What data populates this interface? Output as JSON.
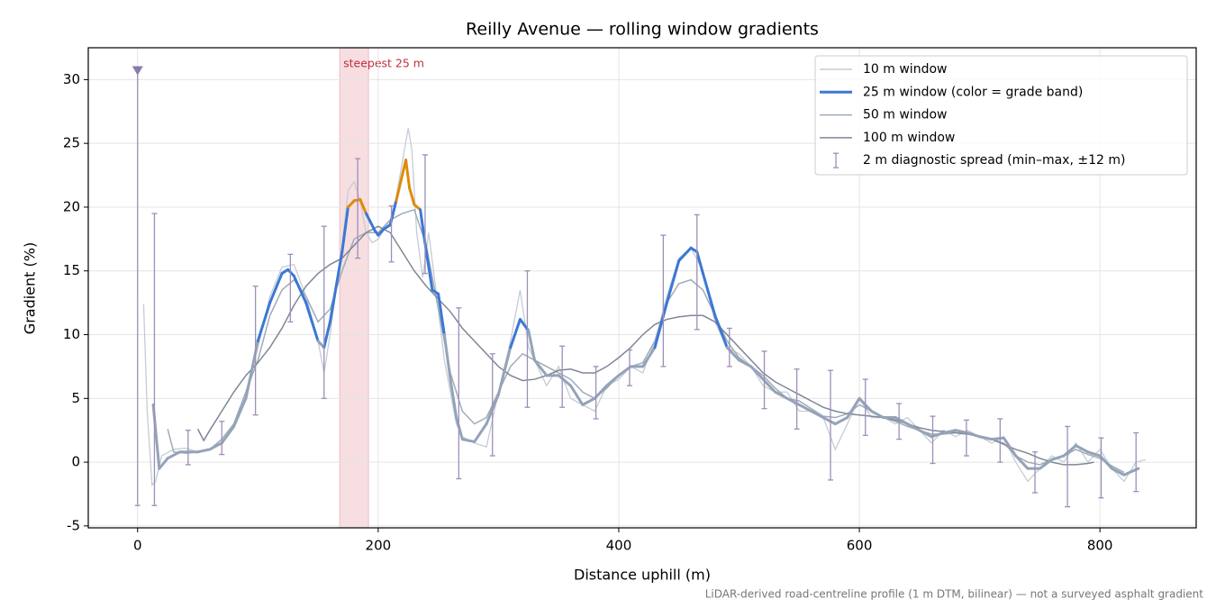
{
  "chart_data": {
    "type": "line",
    "title": "Reilly Avenue — rolling window gradients",
    "xlabel": "Distance uphill (m)",
    "ylabel": "Gradient (%)",
    "footnote": "LiDAR-derived road-centreline profile (1 m DTM, bilinear) — not a surveyed asphalt gradient",
    "xlim": [
      -41,
      880
    ],
    "ylim": [
      -5.15,
      32.5
    ],
    "xticks": [
      0,
      200,
      400,
      600,
      800
    ],
    "yticks": [
      -5,
      0,
      5,
      10,
      15,
      20,
      25,
      30
    ],
    "grid": true,
    "legend": "upper right",
    "span": {
      "x": [
        168,
        192
      ],
      "color": "#e8a0a8",
      "label": "steepest 25 m",
      "label_color": "#c0303c"
    },
    "grade_bands": {
      "thresholds": [
        10,
        20
      ],
      "colors": [
        "#94a3b8",
        "#3a78d4",
        "#e08a0b"
      ]
    },
    "series": [
      {
        "name": "10 m window",
        "color": "#c5ccd6",
        "x": [
          5,
          8,
          12,
          15,
          20,
          30,
          40,
          50,
          60,
          70,
          80,
          90,
          100,
          110,
          120,
          130,
          140,
          150,
          155,
          160,
          170,
          175,
          180,
          185,
          190,
          195,
          200,
          210,
          215,
          220,
          225,
          228,
          232,
          237,
          242,
          246,
          250,
          255,
          260,
          265,
          270,
          280,
          290,
          300,
          310,
          318,
          325,
          330,
          340,
          350,
          360,
          370,
          380,
          390,
          400,
          410,
          420,
          430,
          440,
          450,
          460,
          470,
          480,
          490,
          500,
          510,
          520,
          530,
          540,
          550,
          560,
          570,
          580,
          590,
          600,
          610,
          620,
          630,
          640,
          650,
          660,
          670,
          680,
          690,
          700,
          710,
          720,
          730,
          740,
          750,
          760,
          770,
          780,
          790,
          800,
          810,
          820,
          830,
          838
        ],
        "values": [
          12.4,
          4,
          -1.8,
          -1.5,
          0.5,
          1.0,
          1.1,
          0.8,
          1.0,
          1.5,
          3.0,
          5.5,
          9.0,
          13.0,
          15.3,
          15.5,
          13.0,
          9.5,
          7.0,
          10.0,
          17.0,
          21.3,
          22.0,
          20.5,
          18.0,
          17.2,
          17.5,
          19.0,
          20.8,
          23.5,
          26.2,
          24.5,
          18.0,
          14.5,
          18.0,
          15.0,
          12.0,
          8.0,
          5.5,
          3.0,
          2.0,
          1.5,
          1.2,
          5.5,
          9.5,
          13.5,
          9.0,
          8.0,
          6.0,
          7.5,
          5.0,
          4.5,
          4.0,
          6.0,
          6.5,
          7.5,
          7.0,
          9.5,
          13.0,
          16.0,
          16.8,
          15.0,
          11.0,
          9.0,
          8.5,
          7.5,
          6.0,
          5.5,
          5.5,
          4.0,
          4.0,
          3.5,
          1.0,
          3.0,
          5.0,
          3.5,
          3.5,
          3.0,
          3.5,
          2.5,
          1.5,
          2.5,
          2.0,
          2.5,
          2.0,
          1.5,
          2.0,
          0.0,
          -1.5,
          -0.5,
          0.5,
          0.0,
          1.5,
          0.0,
          1.0,
          -0.5,
          -1.5,
          0.0,
          0.2
        ]
      },
      {
        "name": "25 m window (color = grade band)",
        "color": "#3a78d4",
        "banded": true,
        "x": [
          13,
          18,
          25,
          35,
          50,
          60,
          70,
          80,
          90,
          100,
          110,
          120,
          125,
          130,
          140,
          150,
          155,
          160,
          170,
          175,
          180,
          185,
          190,
          197,
          200,
          205,
          210,
          215,
          220,
          223,
          226,
          230,
          235,
          240,
          245,
          250,
          255,
          260,
          265,
          270,
          280,
          290,
          300,
          310,
          318,
          325,
          330,
          340,
          350,
          360,
          370,
          380,
          390,
          400,
          410,
          420,
          430,
          440,
          450,
          460,
          465,
          470,
          480,
          490,
          500,
          510,
          520,
          530,
          540,
          550,
          560,
          570,
          580,
          590,
          600,
          610,
          620,
          630,
          640,
          650,
          660,
          670,
          680,
          690,
          700,
          710,
          720,
          730,
          740,
          750,
          760,
          770,
          780,
          790,
          800,
          810,
          820,
          832
        ],
        "values": [
          4.5,
          -0.5,
          0.3,
          0.8,
          0.8,
          1.0,
          1.5,
          2.8,
          5.0,
          9.5,
          12.5,
          14.8,
          15.1,
          14.6,
          12.5,
          9.5,
          9.0,
          11.0,
          16.5,
          20.0,
          20.5,
          20.6,
          19.5,
          18.2,
          17.8,
          18.3,
          18.6,
          20.5,
          22.5,
          23.7,
          21.5,
          20.2,
          19.8,
          16.5,
          13.5,
          13.2,
          10.0,
          6.5,
          3.5,
          1.8,
          1.6,
          3.0,
          5.3,
          9.0,
          11.2,
          10.3,
          8.0,
          6.8,
          6.8,
          6.0,
          4.5,
          5.0,
          6.0,
          6.8,
          7.5,
          7.5,
          9.0,
          12.5,
          15.8,
          16.8,
          16.5,
          14.8,
          11.5,
          9.0,
          8.0,
          7.5,
          6.5,
          5.5,
          5.0,
          4.5,
          4.0,
          3.5,
          3.0,
          3.5,
          5.0,
          4.0,
          3.5,
          3.5,
          3.0,
          2.5,
          2.0,
          2.3,
          2.5,
          2.3,
          2.0,
          1.8,
          1.9,
          0.5,
          -0.5,
          -0.5,
          0.2,
          0.5,
          1.3,
          0.8,
          0.5,
          -0.5,
          -1.0,
          -0.5
        ]
      },
      {
        "name": "50 m window",
        "color": "#a0aab8",
        "x": [
          25,
          30,
          40,
          50,
          60,
          70,
          80,
          90,
          100,
          110,
          120,
          130,
          140,
          150,
          160,
          170,
          180,
          190,
          200,
          210,
          220,
          230,
          240,
          250,
          260,
          270,
          280,
          290,
          300,
          310,
          320,
          330,
          340,
          350,
          360,
          370,
          380,
          390,
          400,
          410,
          420,
          430,
          440,
          450,
          460,
          470,
          480,
          490,
          500,
          510,
          520,
          530,
          540,
          550,
          560,
          570,
          580,
          590,
          600,
          610,
          620,
          630,
          640,
          650,
          660,
          670,
          680,
          690,
          700,
          710,
          720,
          730,
          740,
          750,
          760,
          770,
          780,
          790,
          800,
          810,
          820
        ],
        "values": [
          2.6,
          0.8,
          0.7,
          0.8,
          1.0,
          1.8,
          3.0,
          5.5,
          8.0,
          11.5,
          13.5,
          14.3,
          13.0,
          11.0,
          12.0,
          15.0,
          17.5,
          18.0,
          18.0,
          19.0,
          19.5,
          19.8,
          17.0,
          12.0,
          7.0,
          4.0,
          3.0,
          3.5,
          5.5,
          7.5,
          8.5,
          8.0,
          7.5,
          7.0,
          6.5,
          5.5,
          5.0,
          5.8,
          6.8,
          7.5,
          7.8,
          9.5,
          12.5,
          14.0,
          14.3,
          13.5,
          11.5,
          9.5,
          8.2,
          7.5,
          6.8,
          5.8,
          5.0,
          4.8,
          4.2,
          3.6,
          3.5,
          3.8,
          4.5,
          4.0,
          3.5,
          3.2,
          2.8,
          2.5,
          2.2,
          2.2,
          2.3,
          2.2,
          2.0,
          1.8,
          1.5,
          0.5,
          0,
          -0.2,
          0.2,
          0.5,
          1.0,
          0.6,
          0.3,
          -0.3,
          -0.8
        ]
      },
      {
        "name": "100 m window",
        "color": "#7f8796",
        "x": [
          50,
          55,
          60,
          70,
          80,
          90,
          100,
          110,
          120,
          130,
          140,
          150,
          160,
          170,
          180,
          190,
          200,
          210,
          220,
          230,
          240,
          250,
          260,
          270,
          280,
          290,
          300,
          310,
          320,
          330,
          340,
          350,
          360,
          370,
          380,
          390,
          400,
          410,
          420,
          430,
          440,
          450,
          460,
          470,
          480,
          490,
          500,
          510,
          520,
          530,
          540,
          550,
          560,
          570,
          580,
          590,
          600,
          610,
          620,
          630,
          640,
          650,
          660,
          670,
          680,
          690,
          700,
          710,
          720,
          730,
          740,
          750,
          760,
          770,
          780,
          790,
          795
        ],
        "values": [
          2.6,
          1.7,
          2.5,
          4.0,
          5.5,
          6.8,
          7.8,
          9.0,
          10.5,
          12.3,
          13.8,
          14.8,
          15.5,
          16.0,
          17.0,
          18.0,
          18.5,
          18.0,
          16.5,
          15.0,
          13.8,
          12.8,
          11.8,
          10.5,
          9.5,
          8.5,
          7.5,
          6.8,
          6.4,
          6.5,
          6.8,
          7.2,
          7.3,
          7.0,
          7.0,
          7.5,
          8.2,
          9.0,
          10.0,
          10.8,
          11.2,
          11.4,
          11.5,
          11.5,
          11.0,
          10.0,
          9.0,
          8.0,
          7.0,
          6.3,
          5.8,
          5.3,
          4.8,
          4.3,
          4.0,
          3.8,
          3.7,
          3.6,
          3.5,
          3.3,
          3.0,
          2.7,
          2.5,
          2.4,
          2.3,
          2.2,
          2.0,
          1.8,
          1.4,
          1.0,
          0.7,
          0.3,
          0.0,
          -0.2,
          -0.2,
          -0.1,
          0.0
        ]
      },
      {
        "name": "2 m diagnostic spread (min–max, ±12 m)",
        "color": "#9c8fb8",
        "errorbar": true,
        "x": [
          0,
          14,
          42,
          70,
          98,
          127,
          155,
          183,
          211,
          239,
          267,
          295,
          324,
          353,
          381,
          409,
          437,
          465,
          492,
          521,
          548,
          576,
          605,
          633,
          661,
          689,
          717,
          746,
          773,
          801,
          830
        ],
        "low": [
          -3.4,
          -3.4,
          -0.2,
          0.6,
          3.7,
          11.0,
          5.0,
          16.0,
          15.7,
          14.8,
          -1.3,
          0.5,
          4.3,
          4.3,
          3.4,
          6.0,
          7.5,
          10.4,
          7.5,
          4.2,
          2.6,
          -1.4,
          2.1,
          1.8,
          -0.1,
          0.5,
          0,
          -2.4,
          -3.5,
          -2.8,
          -2.3
        ],
        "high": [
          30.7,
          19.5,
          2.5,
          3.2,
          13.8,
          16.3,
          18.5,
          23.8,
          20.1,
          24.1,
          12.1,
          8.5,
          15.0,
          9.1,
          7.5,
          8.8,
          17.8,
          19.4,
          10.5,
          8.7,
          7.3,
          7.2,
          6.5,
          4.6,
          3.6,
          3.3,
          3.4,
          0.8,
          2.8,
          1.9,
          2.3
        ]
      }
    ]
  }
}
